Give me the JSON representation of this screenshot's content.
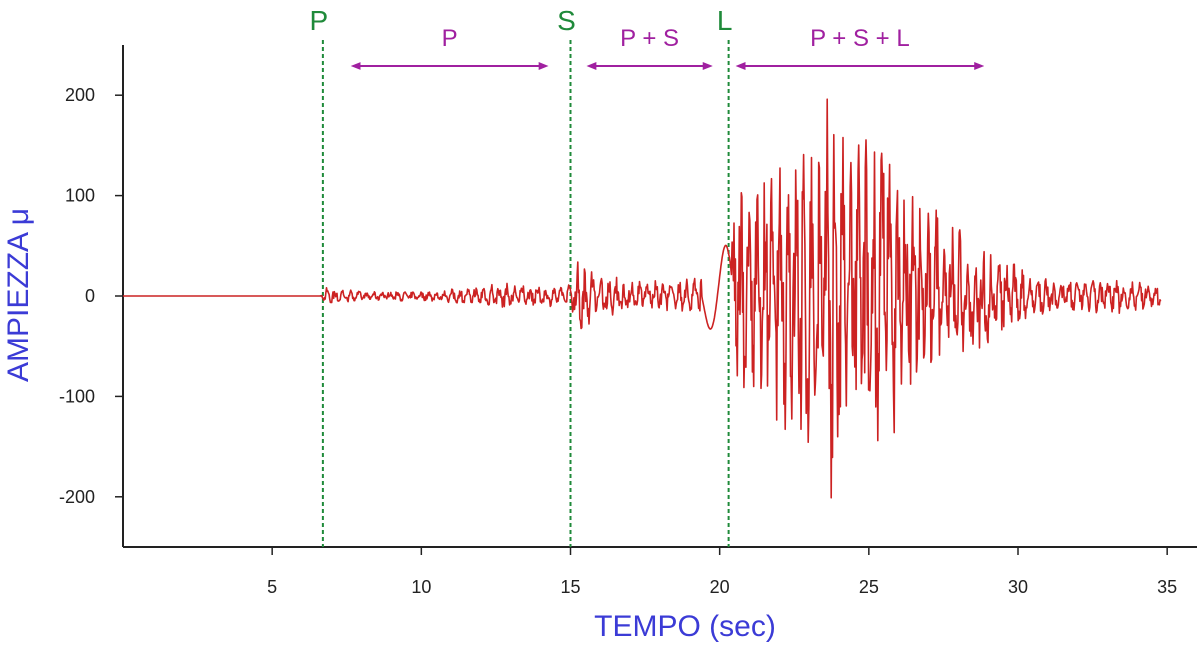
{
  "chart_data": {
    "type": "line",
    "title": "",
    "xlabel": "TEMPO  (sec)",
    "ylabel": "AMPIEZZA μ",
    "xlim": [
      0,
      36
    ],
    "ylim": [
      -250,
      250
    ],
    "xticks": [
      5,
      10,
      15,
      20,
      25,
      30,
      35
    ],
    "yticks": [
      200,
      100,
      0,
      -100,
      -200
    ],
    "grid": false,
    "markers": [
      {
        "label": "P",
        "x": 6.7
      },
      {
        "label": "S",
        "x": 15.0
      },
      {
        "label": "L",
        "x": 20.3
      }
    ],
    "phases": [
      {
        "label": "P",
        "x_start": 7.8,
        "x_end": 14.1
      },
      {
        "label": "P + S",
        "x_start": 15.7,
        "x_end": 19.6
      },
      {
        "label": "P + S + L",
        "x_start": 20.7,
        "x_end": 28.7
      }
    ],
    "series": [
      {
        "color": "#cc2222",
        "envelope": [
          [
            0.0,
            0
          ],
          [
            6.6,
            0
          ],
          [
            6.8,
            10
          ],
          [
            8,
            5
          ],
          [
            10,
            5
          ],
          [
            11.5,
            8
          ],
          [
            12.5,
            14
          ],
          [
            14,
            10
          ],
          [
            15.0,
            12
          ],
          [
            15.3,
            40
          ],
          [
            16.5,
            28
          ],
          [
            17.5,
            16
          ],
          [
            18.5,
            14
          ],
          [
            19.5,
            30
          ],
          [
            20.3,
            60
          ],
          [
            20.6,
            110
          ],
          [
            22,
            140
          ],
          [
            23,
            160
          ],
          [
            23.8,
            215
          ],
          [
            24.5,
            170
          ],
          [
            25.5,
            180
          ],
          [
            26,
            160
          ],
          [
            27,
            100
          ],
          [
            28,
            70
          ],
          [
            29,
            50
          ],
          [
            30,
            30
          ],
          [
            31,
            20
          ],
          [
            32,
            18
          ],
          [
            33,
            18
          ],
          [
            34,
            16
          ],
          [
            34.8,
            12
          ]
        ]
      }
    ]
  }
}
